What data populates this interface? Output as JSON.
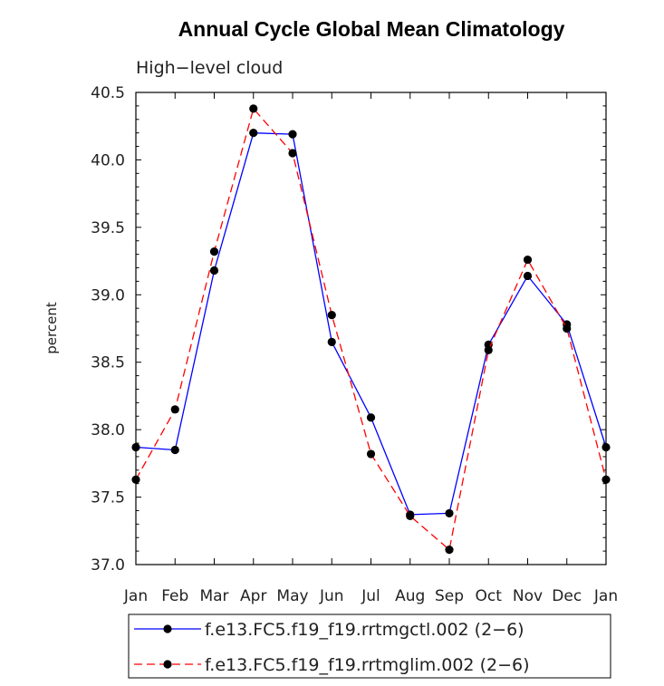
{
  "chart_data": {
    "type": "line",
    "title": "Annual Cycle Global Mean Climatology",
    "subtitle": "High−level cloud",
    "xlabel": "",
    "ylabel": "percent",
    "categories": [
      "Jan",
      "Feb",
      "Mar",
      "Apr",
      "May",
      "Jun",
      "Jul",
      "Aug",
      "Sep",
      "Oct",
      "Nov",
      "Dec",
      "Jan"
    ],
    "ylim": [
      37.0,
      40.5
    ],
    "yticks": [
      "37.0",
      "37.5",
      "38.0",
      "38.5",
      "39.0",
      "39.5",
      "40.0",
      "40.5"
    ],
    "grid": false,
    "legend_position": "bottom",
    "series": [
      {
        "name": "f.e13.FC5.f19_f19.rrtmgctl.002 (2−6)",
        "color": "#0000ff",
        "dash": "solid",
        "values": [
          37.87,
          37.85,
          39.18,
          40.2,
          40.19,
          38.65,
          38.09,
          37.37,
          37.38,
          38.63,
          39.14,
          38.78,
          37.87
        ]
      },
      {
        "name": "f.e13.FC5.f19_f19.rrtmglim.002 (2−6)",
        "color": "#ff0000",
        "dash": "dashed",
        "values": [
          37.63,
          38.15,
          39.32,
          40.38,
          40.05,
          38.85,
          37.82,
          37.36,
          37.11,
          38.59,
          39.26,
          38.75,
          37.63
        ]
      }
    ]
  }
}
